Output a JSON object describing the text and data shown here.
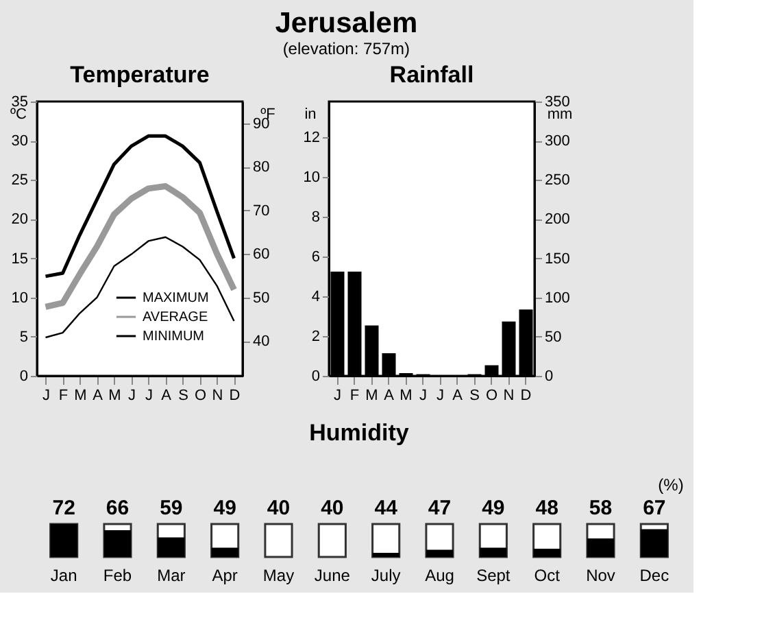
{
  "chart_data": [
    {
      "type": "other",
      "title": "Jerusalem",
      "subtitle": "(elevation: 757m)"
    },
    {
      "type": "line",
      "title": "Temperature",
      "ylabel": "ºC",
      "y2label": "ºF",
      "categories": [
        "J",
        "F",
        "M",
        "A",
        "M",
        "J",
        "J",
        "A",
        "S",
        "O",
        "N",
        "D"
      ],
      "series": [
        {
          "name": "MAXIMUM",
          "color": "#000000",
          "values": [
            12.7,
            13.1,
            18,
            22.5,
            27,
            29.3,
            30.6,
            30.6,
            29.3,
            27.2,
            21,
            15
          ]
        },
        {
          "name": "AVERAGE",
          "color": "#999999",
          "values": [
            8.8,
            9.3,
            13,
            16.5,
            20.6,
            22.6,
            23.9,
            24.2,
            22.8,
            20.8,
            15.6,
            11
          ]
        },
        {
          "name": "MINIMUM",
          "color": "#000000",
          "values": [
            4.9,
            5.5,
            8,
            10,
            14,
            15.5,
            17.2,
            17.7,
            16.5,
            14.8,
            11.5,
            7
          ]
        }
      ],
      "ylim": [
        0,
        35
      ],
      "yticks": [
        0,
        5,
        10,
        15,
        20,
        25,
        30,
        35
      ],
      "y2lim": [
        32,
        95
      ],
      "y2ticks": [
        40,
        50,
        60,
        70,
        80,
        90
      ],
      "legend": "bottom right",
      "grid": false,
      "marker": "none",
      "line_style": "solid"
    },
    {
      "type": "bar",
      "title": "Rainfall",
      "ylabel": "in",
      "y2label": "mm",
      "categories": [
        "J",
        "F",
        "M",
        "A",
        "M",
        "J",
        "J",
        "A",
        "S",
        "O",
        "N",
        "D"
      ],
      "series": [
        {
          "color": "#000000",
          "values": [
            5.2,
            5.2,
            2.5,
            1.1,
            0.1,
            0.05,
            0,
            0,
            0.05,
            0.5,
            2.7,
            3.3
          ]
        }
      ],
      "ylim": [
        0,
        13.78
      ],
      "yticks": [
        0,
        2,
        4,
        6,
        8,
        10,
        12
      ],
      "y2lim": [
        0,
        350
      ],
      "y2ticks": [
        0,
        50,
        100,
        150,
        200,
        250,
        300,
        350
      ],
      "grid": false
    },
    {
      "type": "other",
      "title": "Humidity",
      "ylabel": "(%)",
      "categories": [
        "Jan",
        "Feb",
        "Mar",
        "Apr",
        "May",
        "June",
        "July",
        "Aug",
        "Sept",
        "Oct",
        "Nov",
        "Dec"
      ],
      "values": [
        72,
        66,
        59,
        49,
        40,
        40,
        44,
        47,
        49,
        48,
        58,
        67
      ],
      "data_labels": true
    }
  ]
}
